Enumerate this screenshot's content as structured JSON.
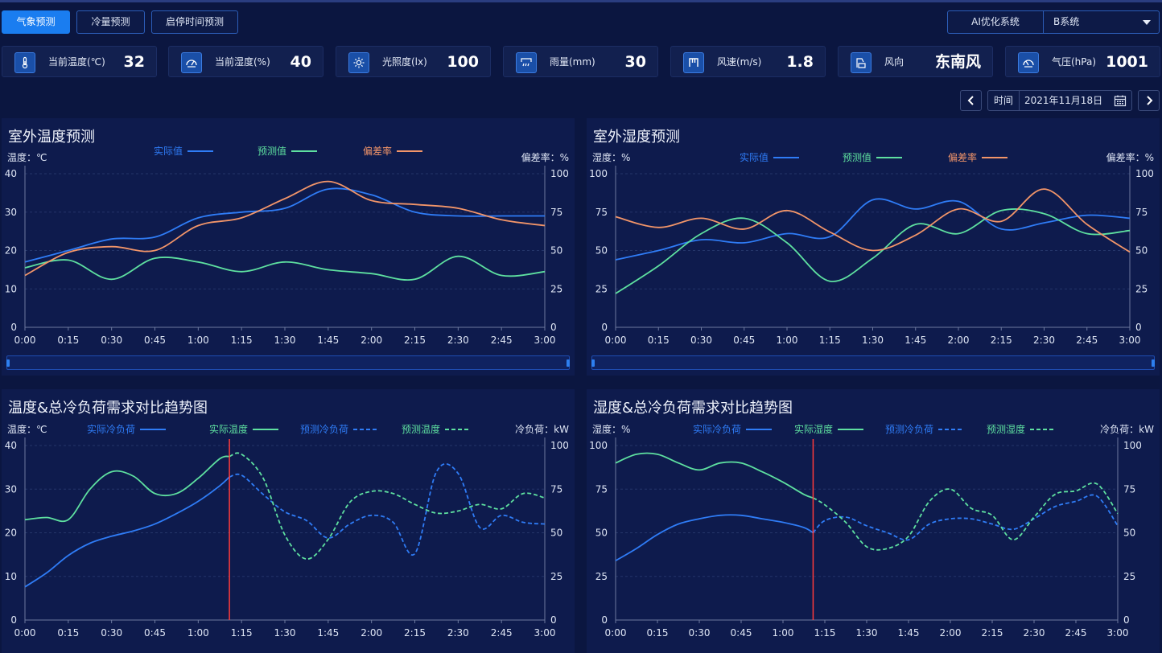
{
  "tabs": [
    {
      "label": "气象预测",
      "active": true
    },
    {
      "label": "冷量预测",
      "active": false
    },
    {
      "label": "启停时间预测",
      "active": false
    }
  ],
  "ai_system": {
    "label": "AI优化系统",
    "selected": "B系统"
  },
  "metrics": [
    {
      "icon": "thermometer-icon",
      "label": "当前温度(℃)",
      "value": "32"
    },
    {
      "icon": "humidity-gauge-icon",
      "label": "当前湿度(%)",
      "value": "40"
    },
    {
      "icon": "sun-icon",
      "label": "光照度(lx)",
      "value": "100"
    },
    {
      "icon": "rain-icon",
      "label": "雨量(mm)",
      "value": "30"
    },
    {
      "icon": "wind-speed-icon",
      "label": "风速(m/s)",
      "value": "1.8"
    },
    {
      "icon": "wind-direction-icon",
      "label": "风向",
      "value": "东南风"
    },
    {
      "icon": "pressure-gauge-icon",
      "label": "气压(hPa)",
      "value": "1001"
    }
  ],
  "date_picker": {
    "label": "时间",
    "value": "2021年11月18日"
  },
  "colors": {
    "blue": "#2f7cf6",
    "green": "#5ee0a0",
    "orange": "#f29569",
    "red": "#ff3b3b"
  },
  "chart_data": [
    {
      "type": "line",
      "title": "室外温度预测",
      "ylabel": "温度：℃",
      "y2label": "偏差率：%",
      "ylim": [
        0,
        40
      ],
      "y2lim": [
        0,
        100
      ],
      "y_ticks": [
        "0",
        "10",
        "20",
        "30",
        "40"
      ],
      "y2_ticks": [
        "0",
        "25",
        "50",
        "75",
        "100"
      ],
      "categories": [
        "0:00",
        "0:15",
        "0:30",
        "0:45",
        "1:00",
        "1:15",
        "1:30",
        "1:45",
        "2:00",
        "2:15",
        "2:30",
        "2:45",
        "3:00"
      ],
      "series": [
        {
          "name": "实际值",
          "color": "#2f7cf6",
          "dashed": false,
          "axis": "left",
          "values": [
            17,
            20,
            23,
            23.5,
            28.5,
            30,
            31,
            36,
            34.5,
            30,
            29,
            29,
            29
          ]
        },
        {
          "name": "预测值",
          "color": "#5ee0a0",
          "dashed": false,
          "axis": "left",
          "values": [
            15.5,
            17.5,
            12.5,
            18,
            17,
            14.5,
            17,
            15,
            14,
            12.5,
            18.5,
            13.5,
            14.5
          ]
        },
        {
          "name": "偏差率",
          "color": "#f29569",
          "dashed": false,
          "axis": "left",
          "values": [
            13.5,
            19.5,
            21,
            20,
            26.5,
            28.5,
            33.5,
            38,
            33,
            32,
            31,
            28,
            26.5
          ]
        }
      ]
    },
    {
      "type": "line",
      "title": "室外湿度预测",
      "ylabel": "湿度：%",
      "y2label": "偏差率：%",
      "ylim": [
        0,
        100
      ],
      "y2lim": [
        0,
        100
      ],
      "y_ticks": [
        "0",
        "25",
        "50",
        "75",
        "100"
      ],
      "y2_ticks": [
        "0",
        "25",
        "50",
        "75",
        "100"
      ],
      "categories": [
        "0:00",
        "0:15",
        "0:30",
        "0:45",
        "1:00",
        "1:15",
        "1:30",
        "1:45",
        "2:00",
        "2:15",
        "2:30",
        "2:45",
        "3:00"
      ],
      "series": [
        {
          "name": "实际值",
          "color": "#2f7cf6",
          "dashed": false,
          "axis": "left",
          "values": [
            44,
            50,
            57,
            55,
            61,
            59,
            83,
            77,
            82,
            64,
            68,
            73,
            71
          ]
        },
        {
          "name": "预测值",
          "color": "#5ee0a0",
          "dashed": false,
          "axis": "left",
          "values": [
            22,
            40,
            61,
            71,
            55,
            30,
            45,
            67,
            61,
            76,
            74,
            61,
            63
          ]
        },
        {
          "name": "偏差率",
          "color": "#f29569",
          "dashed": false,
          "axis": "left",
          "values": [
            72,
            65,
            71,
            64,
            76,
            62,
            50,
            60,
            77,
            69,
            90,
            67,
            49
          ]
        }
      ]
    },
    {
      "type": "line",
      "title": "温度&总冷负荷需求对比趋势图",
      "ylabel": "温度：℃",
      "y2label": "冷负荷：kW",
      "ylim": [
        0,
        40
      ],
      "y2lim": [
        0,
        100
      ],
      "y_ticks": [
        "0",
        "10",
        "20",
        "30",
        "40"
      ],
      "y2_ticks": [
        "0",
        "25",
        "50",
        "75",
        "100"
      ],
      "categories": [
        "0:00",
        "0:15",
        "0:30",
        "0:45",
        "1:00",
        "1:15",
        "1:30",
        "1:45",
        "2:00",
        "2:15",
        "2:30",
        "2:45",
        "3:00"
      ],
      "marker_x": 4.72,
      "series": [
        {
          "name": "实际冷负荷",
          "color": "#2f7cf6",
          "dashed": false,
          "axis": "right",
          "x": [
            0,
            0.5,
            1,
            1.5,
            2,
            2.5,
            3,
            3.5,
            4,
            4.5,
            4.72
          ],
          "values": [
            19,
            27,
            37,
            44,
            48,
            51,
            55,
            61,
            68,
            77,
            82
          ]
        },
        {
          "name": "实际温度",
          "color": "#5ee0a0",
          "dashed": false,
          "axis": "left",
          "x": [
            0,
            0.5,
            1,
            1.5,
            2,
            2.5,
            3,
            3.5,
            4,
            4.5,
            4.72
          ],
          "values": [
            23,
            23.5,
            23,
            30,
            34,
            33,
            29,
            29,
            32.5,
            37,
            37.5
          ]
        },
        {
          "name": "预测冷负荷",
          "color": "#2f7cf6",
          "dashed": true,
          "axis": "right",
          "x": [
            4.72,
            5,
            5.5,
            6,
            6.5,
            7,
            7.5,
            8,
            8.5,
            9,
            9.5,
            10,
            10.5,
            11,
            11.5,
            12
          ],
          "values": [
            82,
            83,
            72,
            62,
            57,
            47,
            55,
            60,
            56,
            38,
            85,
            84,
            53,
            60,
            56,
            55
          ]
        },
        {
          "name": "预测温度",
          "color": "#5ee0a0",
          "dashed": true,
          "axis": "left",
          "x": [
            4.72,
            5,
            5.5,
            6,
            6.5,
            7,
            7.5,
            8,
            8.5,
            9,
            9.5,
            10,
            10.5,
            11,
            11.5,
            12
          ],
          "values": [
            37.5,
            38,
            32.5,
            19.5,
            14,
            18.5,
            27,
            29.5,
            29,
            26.5,
            24.5,
            25,
            26.5,
            25.5,
            29,
            28
          ]
        }
      ]
    },
    {
      "type": "line",
      "title": "湿度&总冷负荷需求对比趋势图",
      "ylabel": "湿度：%",
      "y2label": "冷负荷：kW",
      "ylim": [
        0,
        100
      ],
      "y2lim": [
        0,
        100
      ],
      "y_ticks": [
        "0",
        "25",
        "50",
        "75",
        "100"
      ],
      "y2_ticks": [
        "0",
        "25",
        "50",
        "75",
        "100"
      ],
      "categories": [
        "0:00",
        "0:15",
        "0:30",
        "0:45",
        "1:00",
        "1:15",
        "1:30",
        "1:45",
        "2:00",
        "2:15",
        "2:30",
        "2:45",
        "3:00"
      ],
      "marker_x": 4.72,
      "series": [
        {
          "name": "实际冷负荷",
          "color": "#2f7cf6",
          "dashed": false,
          "axis": "right",
          "x": [
            0,
            0.5,
            1,
            1.5,
            2,
            2.5,
            3,
            3.5,
            4,
            4.5,
            4.72
          ],
          "values": [
            34,
            41,
            49,
            55,
            58,
            60,
            60,
            58,
            56,
            53,
            50
          ]
        },
        {
          "name": "实际湿度",
          "color": "#5ee0a0",
          "dashed": false,
          "axis": "left",
          "x": [
            0,
            0.5,
            1,
            1.5,
            2,
            2.5,
            3,
            3.5,
            4,
            4.5,
            4.72
          ],
          "values": [
            90,
            95,
            95,
            90,
            86,
            90,
            90,
            85,
            79,
            72,
            70
          ]
        },
        {
          "name": "预测冷负荷",
          "color": "#2f7cf6",
          "dashed": true,
          "axis": "right",
          "x": [
            4.72,
            5,
            5.5,
            6,
            6.5,
            7,
            7.5,
            8,
            8.5,
            9,
            9.5,
            10,
            10.5,
            11,
            11.5,
            12
          ],
          "values": [
            50,
            57,
            59,
            54,
            50,
            46,
            55,
            58,
            58,
            55,
            52,
            58,
            65,
            68,
            71,
            54
          ]
        },
        {
          "name": "预测湿度",
          "color": "#5ee0a0",
          "dashed": true,
          "axis": "left",
          "x": [
            4.72,
            5,
            5.5,
            6,
            6.5,
            7,
            7.5,
            8,
            8.5,
            9,
            9.5,
            10,
            10.5,
            11,
            11.5,
            12
          ],
          "values": [
            70,
            66,
            56,
            42,
            41,
            48,
            68,
            75,
            64,
            60,
            46,
            59,
            72,
            74,
            78,
            61
          ]
        }
      ]
    }
  ]
}
